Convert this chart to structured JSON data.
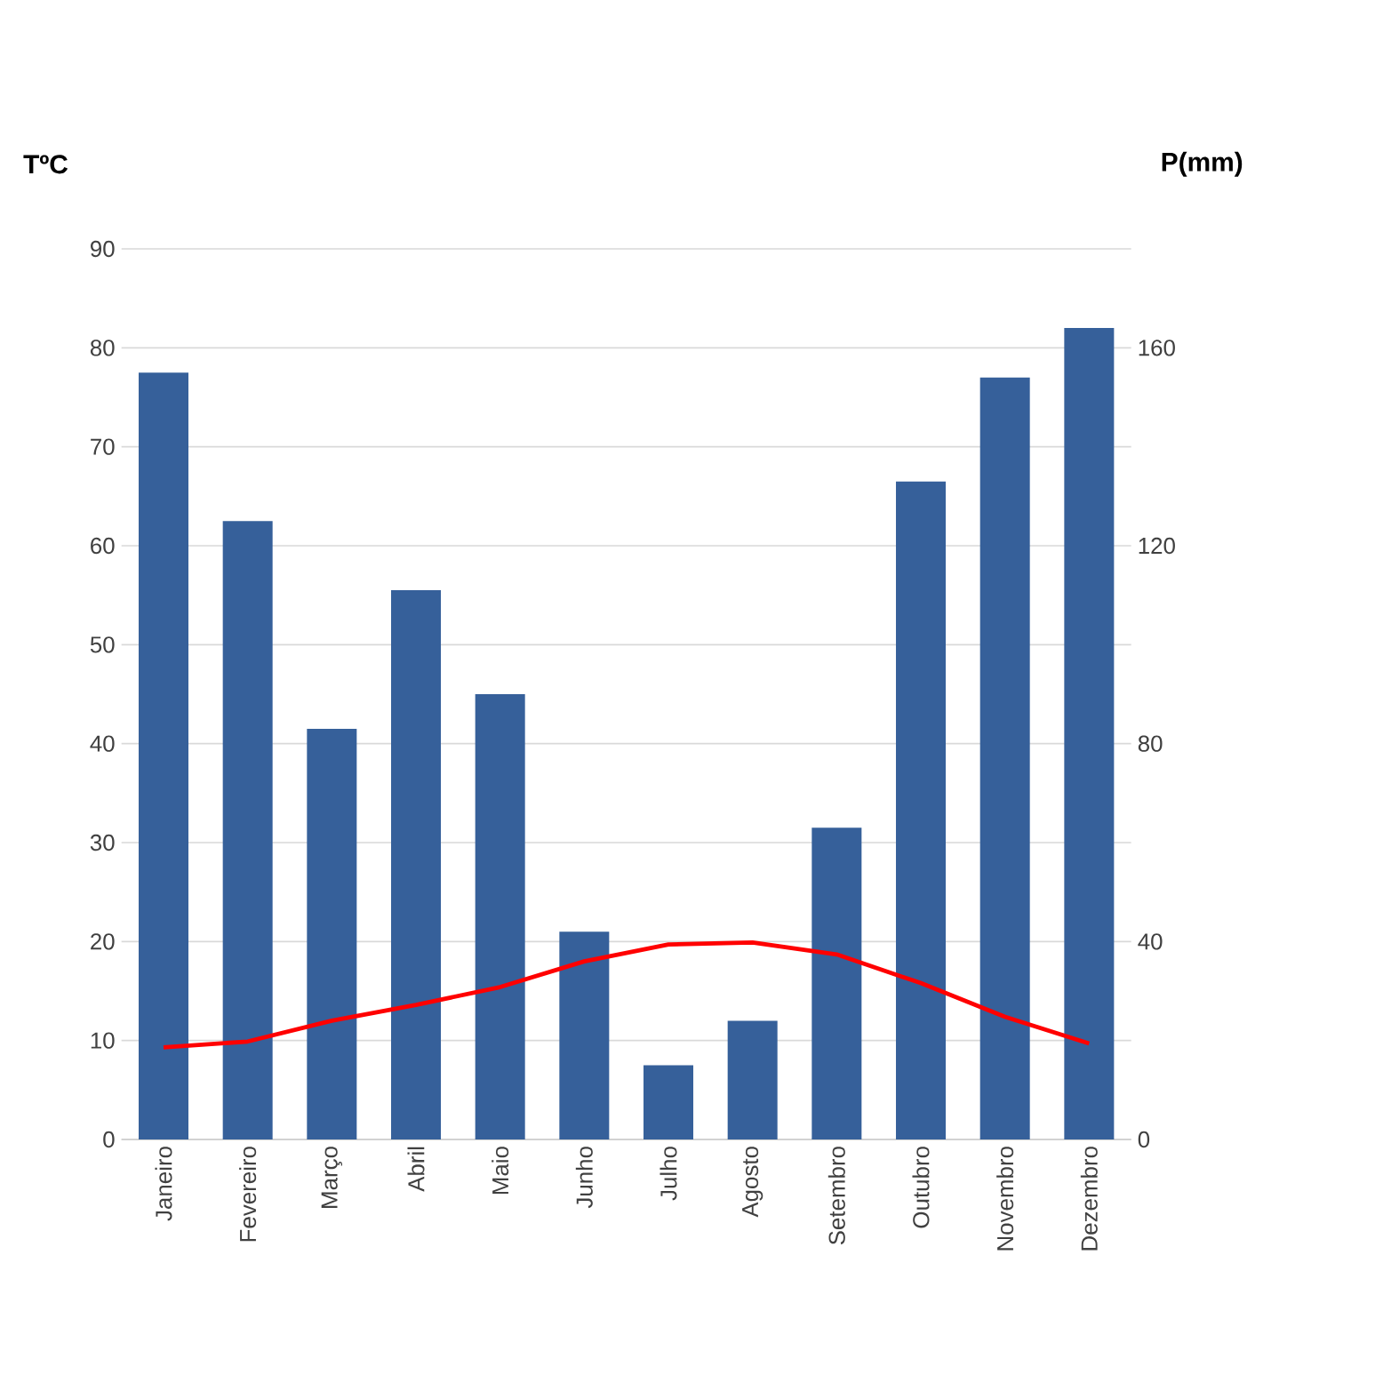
{
  "chart_data": {
    "type": "bar",
    "categories": [
      "Janeiro",
      "Fevereiro",
      "Março",
      "Abril",
      "Maio",
      "Junho",
      "Julho",
      "Agosto",
      "Setembro",
      "Outubro",
      "Novembro",
      "Dezembro"
    ],
    "series": [
      {
        "axis": "y2",
        "color": "#36609a",
        "values": [
          155,
          125,
          83,
          111,
          90,
          42,
          15,
          24,
          63,
          133,
          154,
          164
        ]
      },
      {
        "type": "line",
        "axis": "y",
        "color": "#ff0000",
        "values": [
          9.3,
          9.9,
          12,
          13.6,
          15.4,
          18,
          19.7,
          19.9,
          18.7,
          15.8,
          12.4,
          9.7
        ]
      }
    ],
    "ylabel": "TºC",
    "y2label": "P(mm)",
    "ylim": [
      0,
      90
    ],
    "yticks": [
      0,
      10,
      20,
      30,
      40,
      50,
      60,
      70,
      80,
      90
    ],
    "y2lim": [
      0,
      180
    ],
    "y2ticks": [
      0,
      40,
      80,
      120,
      160
    ],
    "grid": "y",
    "marker": "none",
    "line_style": "solid"
  }
}
